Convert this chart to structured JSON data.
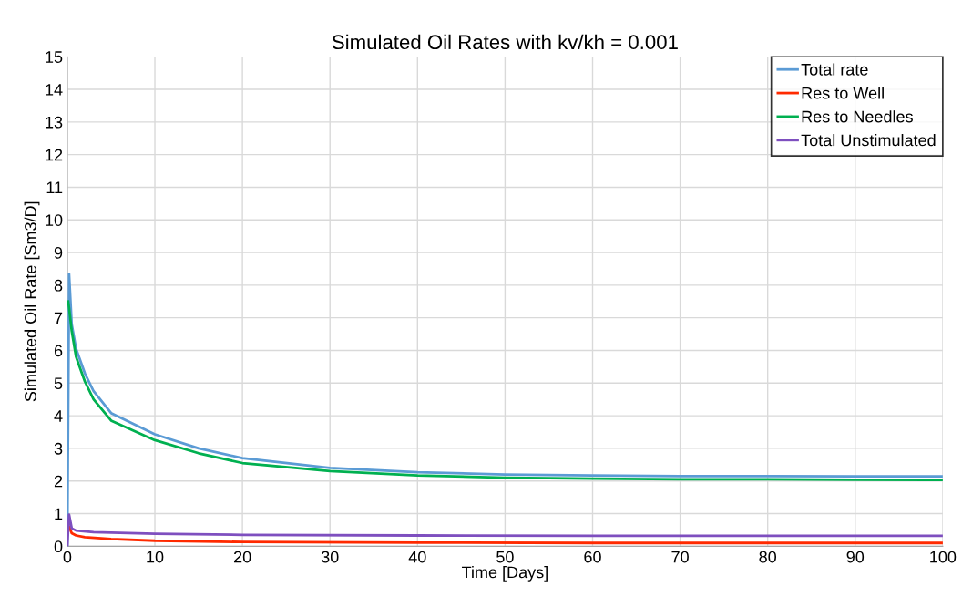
{
  "chart_data": {
    "type": "line",
    "title": "Simulated Oil Rates with kv/kh = 0.001",
    "xlabel": "Time [Days]",
    "ylabel": "Simulated Oil Rate [Sm3/D]",
    "xlim": [
      0,
      100
    ],
    "ylim": [
      0,
      15
    ],
    "xticks": [
      0,
      10,
      20,
      30,
      40,
      50,
      60,
      70,
      80,
      90,
      100
    ],
    "yticks": [
      0,
      1,
      2,
      3,
      4,
      5,
      6,
      7,
      8,
      9,
      10,
      11,
      12,
      13,
      14,
      15
    ],
    "grid": true,
    "legend": "top right",
    "marker": "none",
    "line_style": "solid",
    "series": [
      {
        "name": "Total rate",
        "color": "#5b9bd5",
        "x": [
          0,
          0.2,
          0.5,
          1,
          2,
          3,
          5,
          10,
          15,
          20,
          30,
          40,
          50,
          60,
          70,
          80,
          90,
          100
        ],
        "values": [
          0,
          8.35,
          6.8,
          6.05,
          5.3,
          4.75,
          4.08,
          3.43,
          3.0,
          2.7,
          2.4,
          2.27,
          2.2,
          2.17,
          2.15,
          2.15,
          2.14,
          2.14
        ]
      },
      {
        "name": "Res to Well",
        "color": "#ff2a00",
        "x": [
          0.1,
          0.2,
          0.5,
          1,
          2,
          5,
          10,
          20,
          40,
          60,
          80,
          100
        ],
        "values": [
          0.63,
          0.6,
          0.4,
          0.33,
          0.28,
          0.22,
          0.17,
          0.13,
          0.11,
          0.1,
          0.1,
          0.1
        ]
      },
      {
        "name": "Res to Needles",
        "color": "#00b050",
        "x": [
          0.1,
          0.2,
          0.5,
          1,
          2,
          3,
          5,
          10,
          15,
          20,
          30,
          40,
          50,
          60,
          70,
          80,
          90,
          100
        ],
        "values": [
          7.5,
          7.3,
          6.6,
          5.8,
          5.05,
          4.5,
          3.85,
          3.25,
          2.85,
          2.55,
          2.3,
          2.17,
          2.1,
          2.07,
          2.05,
          2.05,
          2.04,
          2.03
        ]
      },
      {
        "name": "Total Unstimulated",
        "color": "#7e4fbf",
        "x": [
          0,
          0.2,
          0.5,
          1,
          3,
          10,
          20,
          40,
          60,
          80,
          100
        ],
        "values": [
          0,
          0.97,
          0.55,
          0.48,
          0.43,
          0.38,
          0.35,
          0.33,
          0.32,
          0.32,
          0.32
        ]
      }
    ]
  }
}
